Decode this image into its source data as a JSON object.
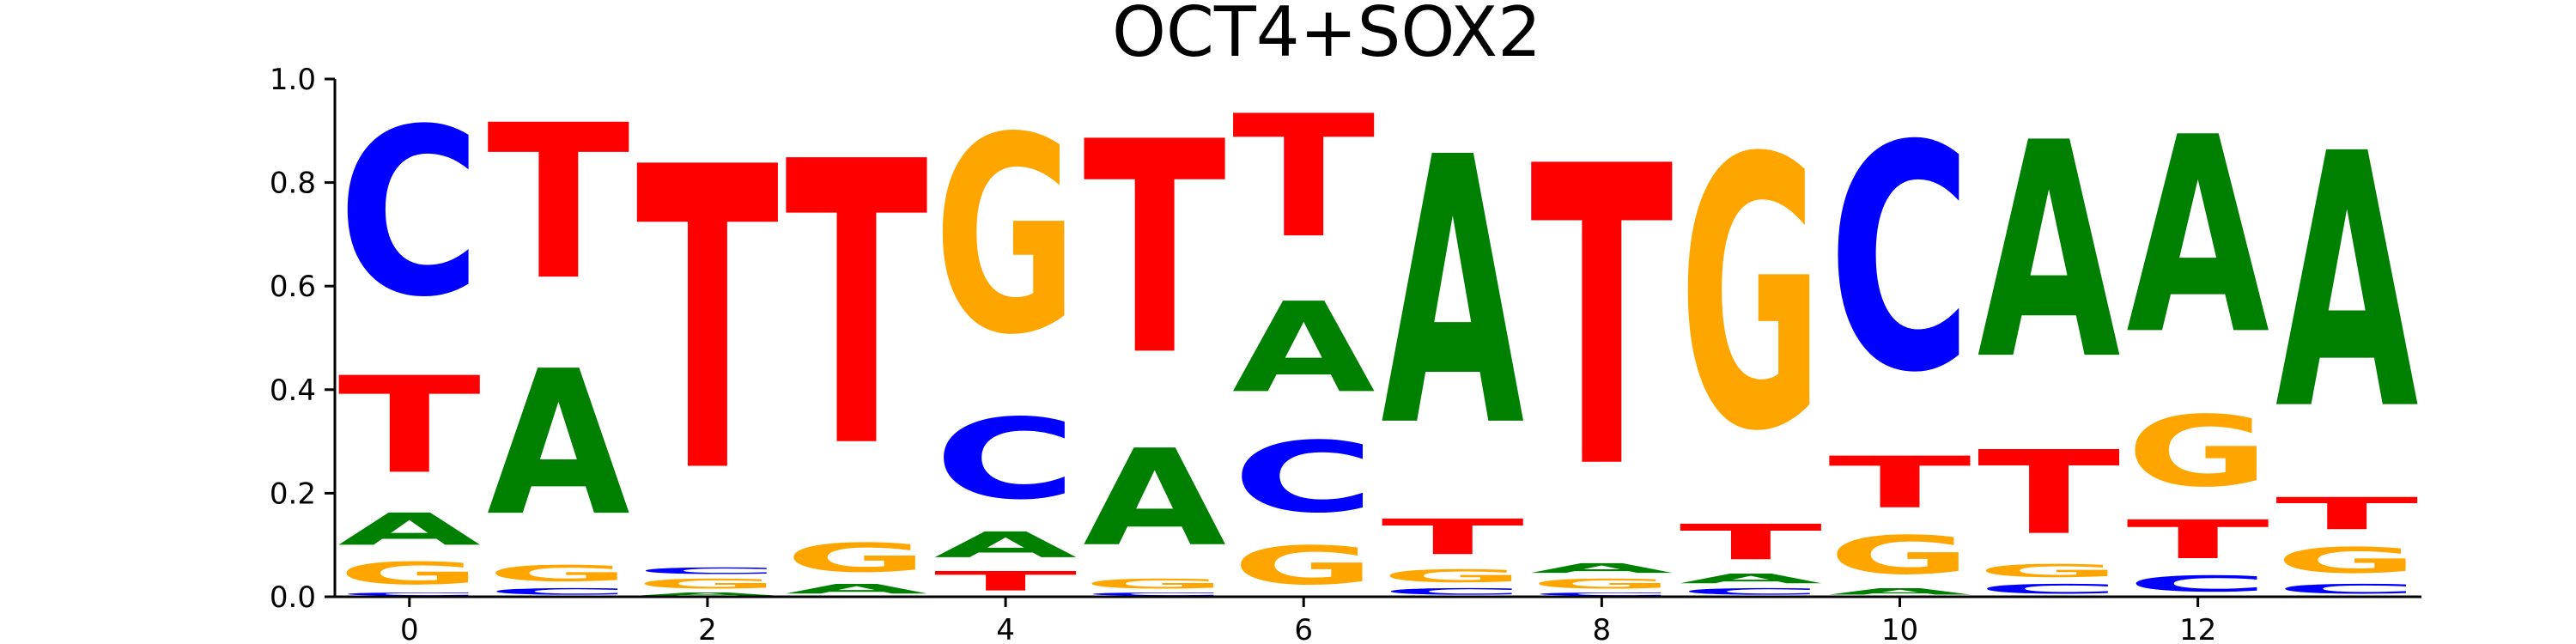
{
  "chart_data": {
    "type": "sequence-logo",
    "title": "OCT4+SOX2",
    "xlabel": "",
    "ylabel": "",
    "ylim": [
      0,
      1.0
    ],
    "xlim": [
      -0.5,
      13.5
    ],
    "x_ticks": [
      0,
      2,
      4,
      6,
      8,
      10,
      12
    ],
    "y_ticks": [
      0.0,
      0.2,
      0.4,
      0.6,
      0.8,
      1.0
    ],
    "grid": false,
    "colors": {
      "A": "#008000",
      "C": "#0000ff",
      "G": "#ffa500",
      "T": "#ff0000"
    },
    "positions": [
      {
        "x": 0,
        "stack": [
          [
            "C",
            0.01
          ],
          [
            "G",
            0.07
          ],
          [
            "A",
            0.1
          ],
          [
            "T",
            0.3
          ],
          [
            "C",
            0.52
          ]
        ]
      },
      {
        "x": 1,
        "stack": [
          [
            "C",
            0.02
          ],
          [
            "G",
            0.05
          ],
          [
            "A",
            0.45
          ],
          [
            "T",
            0.48
          ]
        ]
      },
      {
        "x": 2,
        "stack": [
          [
            "A",
            0.01
          ],
          [
            "G",
            0.03
          ],
          [
            "C",
            0.02
          ],
          [
            "T",
            0.94
          ]
        ]
      },
      {
        "x": 3,
        "stack": [
          [
            "A",
            0.03
          ],
          [
            "G",
            0.09
          ],
          [
            "T",
            0.88
          ]
        ]
      },
      {
        "x": 4,
        "stack": [
          [
            "T",
            0.06
          ],
          [
            "A",
            0.08
          ],
          [
            "C",
            0.25
          ],
          [
            "G",
            0.61
          ]
        ]
      },
      {
        "x": 5,
        "stack": [
          [
            "C",
            0.01
          ],
          [
            "G",
            0.03
          ],
          [
            "A",
            0.3
          ],
          [
            "T",
            0.66
          ]
        ]
      },
      {
        "x": 6,
        "stack": [
          [
            "G",
            0.12
          ],
          [
            "C",
            0.22
          ],
          [
            "A",
            0.28
          ],
          [
            "T",
            0.38
          ]
        ]
      },
      {
        "x": 7,
        "stack": [
          [
            "C",
            0.02
          ],
          [
            "G",
            0.04
          ],
          [
            "T",
            0.11
          ],
          [
            "A",
            0.83
          ]
        ]
      },
      {
        "x": 8,
        "stack": [
          [
            "C",
            0.01
          ],
          [
            "G",
            0.03
          ],
          [
            "A",
            0.03
          ],
          [
            "T",
            0.93
          ]
        ]
      },
      {
        "x": 9,
        "stack": [
          [
            "C",
            0.02
          ],
          [
            "A",
            0.03
          ],
          [
            "T",
            0.11
          ],
          [
            "G",
            0.84
          ]
        ]
      },
      {
        "x": 10,
        "stack": [
          [
            "A",
            0.02
          ],
          [
            "G",
            0.12
          ],
          [
            "T",
            0.16
          ],
          [
            "C",
            0.7
          ]
        ]
      },
      {
        "x": 11,
        "stack": [
          [
            "C",
            0.03
          ],
          [
            "G",
            0.04
          ],
          [
            "T",
            0.26
          ],
          [
            "A",
            0.67
          ]
        ]
      },
      {
        "x": 12,
        "stack": [
          [
            "C",
            0.05
          ],
          [
            "T",
            0.12
          ],
          [
            "G",
            0.22
          ],
          [
            "A",
            0.61
          ]
        ]
      },
      {
        "x": 13,
        "stack": [
          [
            "C",
            0.03
          ],
          [
            "G",
            0.08
          ],
          [
            "T",
            0.1
          ],
          [
            "A",
            0.79
          ]
        ]
      }
    ]
  }
}
